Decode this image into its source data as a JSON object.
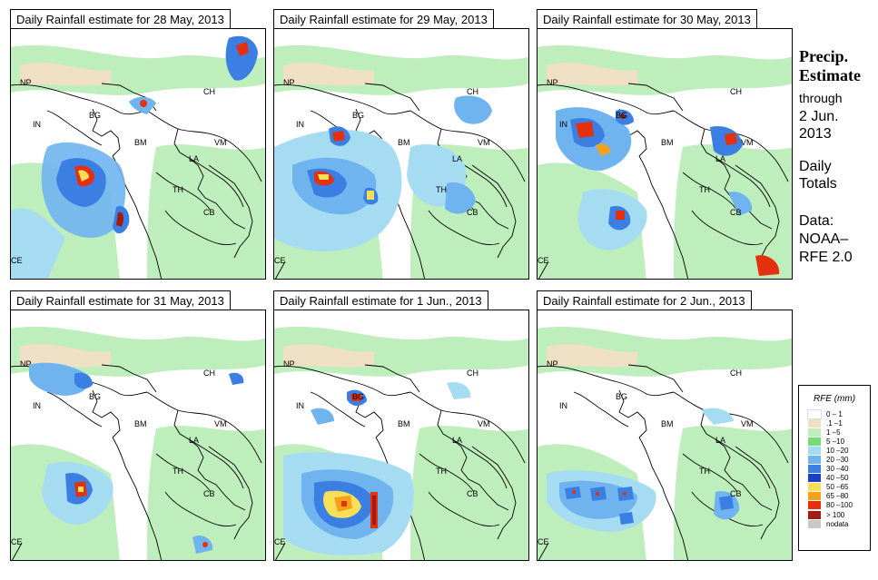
{
  "panels": [
    {
      "title": "Daily Rainfall estimate for  28 May, 2013"
    },
    {
      "title": "Daily Rainfall estimate for  29 May, 2013"
    },
    {
      "title": "Daily Rainfall estimate for  30 May, 2013"
    },
    {
      "title": "Daily Rainfall estimate for  31 May, 2013"
    },
    {
      "title": "Daily Rainfall estimate for  1 Jun., 2013"
    },
    {
      "title": "Daily Rainfall estimate for  2 Jun., 2013"
    }
  ],
  "map_labels": {
    "np": "NP",
    "ch": "CH",
    "in": "IN",
    "bg": "BG",
    "bm": "BM",
    "vm": "VM",
    "la": "LA",
    "th": "TH",
    "cb": "CB",
    "ce": "CE"
  },
  "side": {
    "heading1": "Precip.",
    "heading2": "Estimate",
    "through": "through",
    "date_line1": "2 Jun.",
    "date_line2": "2013",
    "daily": "Daily",
    "totals": "Totals",
    "data_label": "Data:",
    "source1": "NOAA–",
    "source2": "RFE 2.0"
  },
  "legend": {
    "title": "RFE (mm)",
    "items": [
      {
        "label": "0 – 1",
        "color": "#ffffff"
      },
      {
        "label": ".1 –1",
        "color": "#efdfc4"
      },
      {
        "label": "1 –5",
        "color": "#bfeebd"
      },
      {
        "label": "5 –10",
        "color": "#76dd74"
      },
      {
        "label": "10 –20",
        "color": "#a6dcf2"
      },
      {
        "label": "20 –30",
        "color": "#70b4ef"
      },
      {
        "label": "30 –40",
        "color": "#3c7fe3"
      },
      {
        "label": "40 –50",
        "color": "#1c3fc4"
      },
      {
        "label": "50 –65",
        "color": "#f7df58"
      },
      {
        "label": "65 –80",
        "color": "#f5a21a"
      },
      {
        "label": "80 –100",
        "color": "#e4300c"
      },
      {
        "label": "> 100",
        "color": "#a11c14"
      },
      {
        "label": "nodata",
        "color": "#c8c8c8"
      }
    ]
  }
}
